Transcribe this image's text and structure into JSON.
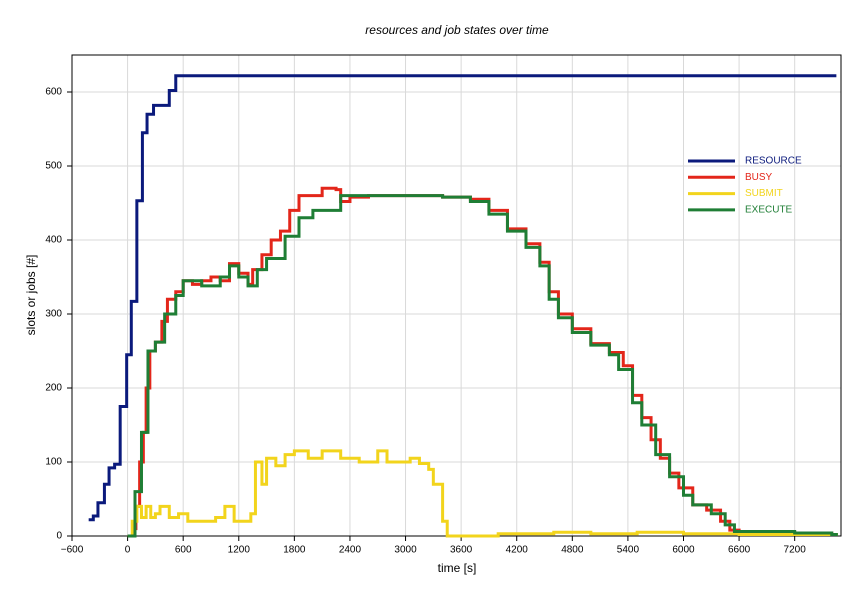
{
  "chart_data": {
    "type": "line",
    "step": true,
    "title": "resources and job states over time",
    "xlabel": "time [s]",
    "ylabel": "slots or jobs [#]",
    "xlim": [
      -600,
      7700
    ],
    "ylim": [
      0,
      650
    ],
    "xticks": [
      {
        "value": -600,
        "label": "−600"
      },
      0,
      600,
      1200,
      1800,
      2400,
      3000,
      3600,
      4200,
      4800,
      5400,
      6000,
      6600,
      7200
    ],
    "yticks": [
      0,
      100,
      200,
      300,
      400,
      500,
      600
    ],
    "grid": true,
    "legend": "upper right",
    "series": [
      {
        "name": "RESOURCE",
        "color": "#0b1a7c",
        "x": [
          -420,
          -370,
          -320,
          -250,
          -200,
          -140,
          -80,
          -10,
          40,
          100,
          160,
          210,
          280,
          450,
          520,
          7650
        ],
        "values": [
          22,
          27,
          45,
          70,
          92,
          97,
          175,
          245,
          317,
          453,
          545,
          570,
          582,
          602,
          622,
          622
        ]
      },
      {
        "name": "BUSY",
        "color": "#e3261a",
        "x": [
          0,
          60,
          90,
          130,
          170,
          200,
          240,
          300,
          370,
          430,
          520,
          600,
          700,
          800,
          900,
          1000,
          1100,
          1200,
          1300,
          1350,
          1450,
          1550,
          1650,
          1750,
          1850,
          2100,
          2250,
          2300,
          2400,
          2600,
          3000,
          3400,
          3700,
          3900,
          4100,
          4300,
          4450,
          4550,
          4650,
          4800,
          5000,
          5200,
          5350,
          5450,
          5550,
          5650,
          5750,
          5850,
          5950,
          6100,
          6250,
          6400,
          6500,
          6600,
          7200,
          7600,
          7650
        ],
        "values": [
          0,
          10,
          40,
          100,
          140,
          200,
          250,
          262,
          290,
          320,
          330,
          345,
          340,
          345,
          350,
          345,
          368,
          355,
          340,
          360,
          380,
          400,
          412,
          440,
          460,
          470,
          468,
          452,
          458,
          460,
          460,
          458,
          455,
          440,
          415,
          395,
          370,
          330,
          300,
          280,
          260,
          248,
          230,
          190,
          160,
          130,
          105,
          85,
          65,
          42,
          35,
          20,
          8,
          5,
          4,
          2,
          0
        ]
      },
      {
        "name": "SUBMIT",
        "color": "#f2d41c",
        "x": [
          0,
          50,
          100,
          150,
          200,
          250,
          300,
          350,
          450,
          550,
          650,
          800,
          950,
          1050,
          1150,
          1300,
          1330,
          1380,
          1450,
          1500,
          1600,
          1700,
          1800,
          1950,
          2100,
          2300,
          2500,
          2700,
          2800,
          3000,
          3050,
          3150,
          3250,
          3300,
          3400,
          3450,
          4000,
          4600,
          5000,
          5500,
          6000,
          6600,
          7650
        ],
        "values": [
          0,
          20,
          40,
          25,
          40,
          25,
          30,
          40,
          25,
          30,
          20,
          20,
          25,
          40,
          20,
          20,
          30,
          100,
          70,
          105,
          95,
          110,
          115,
          105,
          115,
          105,
          100,
          115,
          100,
          100,
          105,
          98,
          90,
          70,
          20,
          0,
          3,
          5,
          3,
          5,
          3,
          2,
          0
        ]
      },
      {
        "name": "EXECUTE",
        "color": "#1f7e35",
        "x": [
          0,
          80,
          150,
          220,
          300,
          400,
          520,
          600,
          800,
          1000,
          1100,
          1200,
          1300,
          1400,
          1500,
          1700,
          1850,
          2000,
          2300,
          2600,
          3000,
          3400,
          3700,
          3900,
          4100,
          4300,
          4450,
          4550,
          4650,
          4800,
          5000,
          5200,
          5300,
          5450,
          5550,
          5700,
          5850,
          6000,
          6100,
          6300,
          6450,
          6550,
          7200,
          7600,
          7650
        ],
        "values": [
          0,
          60,
          140,
          250,
          262,
          300,
          325,
          345,
          338,
          350,
          365,
          350,
          338,
          360,
          375,
          405,
          430,
          440,
          460,
          460,
          460,
          458,
          452,
          435,
          412,
          390,
          365,
          320,
          295,
          275,
          258,
          245,
          225,
          180,
          150,
          110,
          80,
          55,
          42,
          30,
          15,
          6,
          4,
          2,
          0
        ]
      }
    ]
  }
}
